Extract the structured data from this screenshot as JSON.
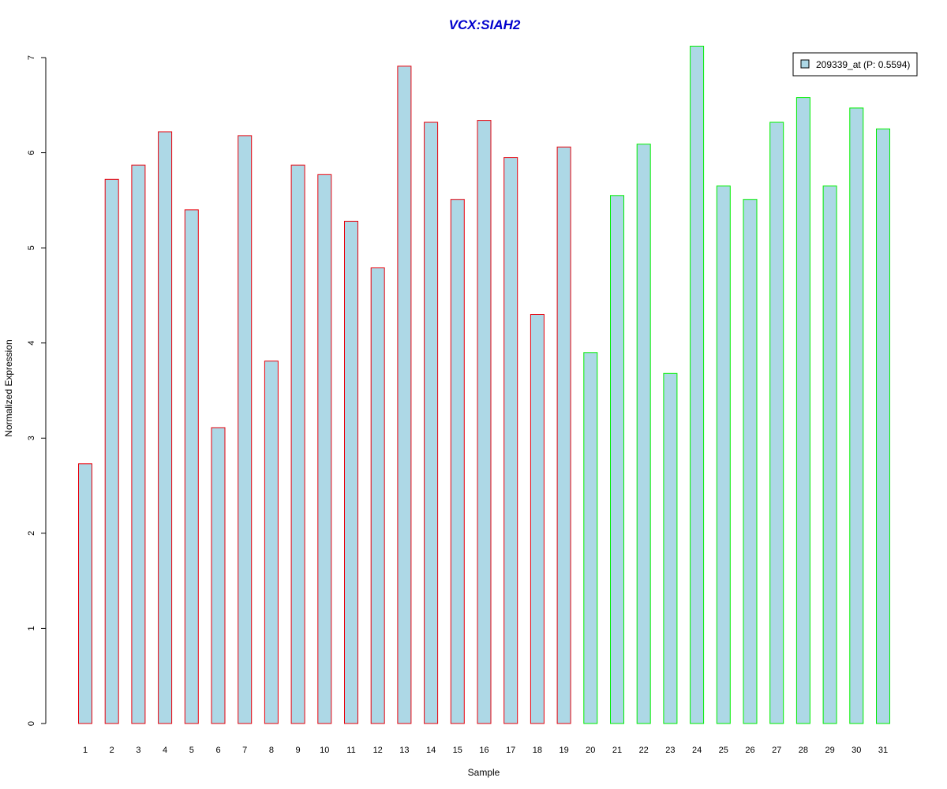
{
  "chart_data": {
    "type": "bar",
    "title": "VCX:SIAH2",
    "xlabel": "Sample",
    "ylabel": "Normalized Expression",
    "ylim": [
      0,
      7
    ],
    "yticks": [
      0,
      1,
      2,
      3,
      4,
      5,
      6,
      7
    ],
    "categories": [
      "1",
      "2",
      "3",
      "4",
      "5",
      "6",
      "7",
      "8",
      "9",
      "10",
      "11",
      "12",
      "13",
      "14",
      "15",
      "16",
      "17",
      "18",
      "19",
      "20",
      "21",
      "22",
      "23",
      "24",
      "25",
      "26",
      "27",
      "28",
      "29",
      "30",
      "31"
    ],
    "series": [
      {
        "name": "209339_at (P: 0.5594)",
        "values": [
          2.73,
          5.72,
          5.87,
          6.22,
          5.4,
          3.11,
          6.18,
          3.81,
          5.87,
          5.77,
          5.28,
          4.79,
          6.91,
          6.32,
          5.51,
          6.34,
          5.95,
          4.3,
          6.06,
          3.9,
          5.55,
          6.09,
          3.68,
          7.12,
          5.65,
          5.51,
          6.32,
          6.58,
          5.65,
          6.47,
          6.25
        ]
      }
    ],
    "groups": [
      {
        "from": 1,
        "to": 19,
        "border_color": "#e8000b"
      },
      {
        "from": 20,
        "to": 31,
        "border_color": "#00ee00"
      }
    ],
    "fill_color": "#add8e6",
    "title_color": "#0000cd",
    "legend": {
      "label": "209339_at (P: 0.5594)",
      "placement": "top-right"
    },
    "grid": false
  }
}
